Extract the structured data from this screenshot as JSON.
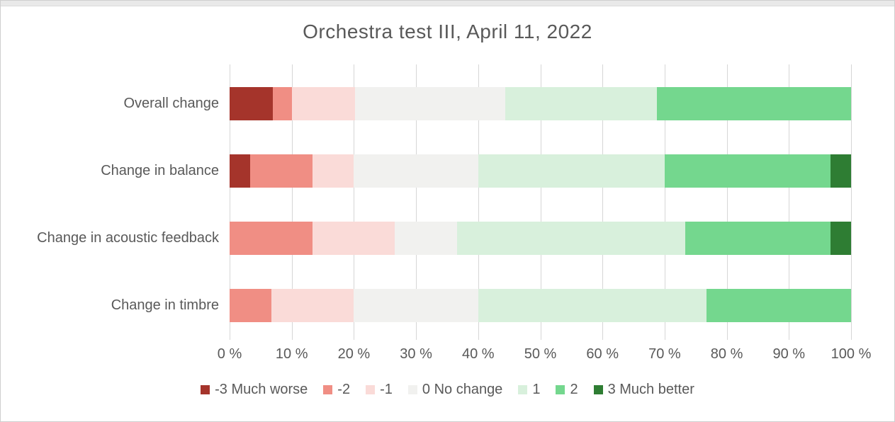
{
  "title": "Orchestra test III, April 11, 2022",
  "chart_data": {
    "type": "bar",
    "orientation": "horizontal-stacked",
    "title": "Orchestra test III, April 11, 2022",
    "xlabel": "",
    "ylabel": "",
    "xlim": [
      0,
      100
    ],
    "grid": true,
    "legend_position": "bottom",
    "x_tick_labels": [
      "0 %",
      "10 %",
      "20 %",
      "30 %",
      "40 %",
      "50 %",
      "60 %",
      "70 %",
      "80 %",
      "90 %",
      "100 %"
    ],
    "categories": [
      "Overall change",
      "Change in balance",
      "Change in acoustic feedback",
      "Change in timbre"
    ],
    "series": [
      {
        "name": "-3 Much worse",
        "color": "#A5342B",
        "values": [
          6.9,
          3.3,
          0,
          0
        ]
      },
      {
        "name": "-2",
        "color": "#F08E84",
        "values": [
          3.1,
          10.0,
          13.3,
          6.7
        ]
      },
      {
        "name": "-1",
        "color": "#FADBD8",
        "values": [
          10.2,
          6.7,
          13.3,
          13.3
        ]
      },
      {
        "name": "0 No change",
        "color": "#F1F1EF",
        "values": [
          24.2,
          20.0,
          10.0,
          20.0
        ]
      },
      {
        "name": "1",
        "color": "#D8F0DC",
        "values": [
          24.4,
          30.0,
          36.7,
          36.7
        ]
      },
      {
        "name": "2",
        "color": "#74D78E",
        "values": [
          31.2,
          26.7,
          23.4,
          23.3
        ]
      },
      {
        "name": "3 Much better",
        "color": "#2E7D33",
        "values": [
          0,
          3.3,
          3.3,
          0
        ]
      }
    ]
  },
  "colors": {
    "text": "#595959",
    "gridline": "#D6D6D6",
    "background": "#FFFFFF"
  }
}
